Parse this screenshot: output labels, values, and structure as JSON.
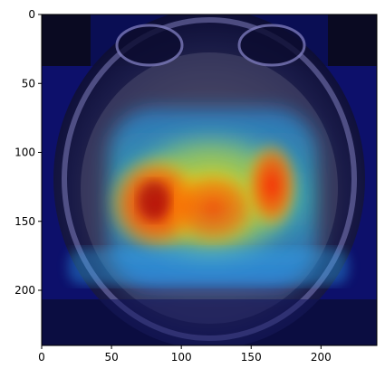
{
  "chart_data": {
    "type": "heatmap",
    "title": "",
    "xlabel": "",
    "ylabel": "",
    "xlim": [
      0,
      240
    ],
    "ylim": [
      240,
      0
    ],
    "x_ticks": [
      0,
      50,
      100,
      150,
      200
    ],
    "y_ticks": [
      0,
      50,
      100,
      150,
      200
    ],
    "x_tick_labels": [
      "0",
      "50",
      "100",
      "150",
      "200"
    ],
    "y_tick_labels": [
      "0",
      "50",
      "100",
      "150",
      "200"
    ],
    "grid": false,
    "colormap": "jet",
    "background_image": "axial brain MRI slice",
    "overlay_opacity": 0.45,
    "heatmap_regions": [
      {
        "x": [
          35,
          205
        ],
        "y": [
          0,
          37
        ],
        "level": 0.05
      },
      {
        "x": [
          0,
          240
        ],
        "y": [
          37,
          205
        ],
        "level": 0.12
      },
      {
        "x": [
          50,
          190
        ],
        "y": [
          55,
          185
        ],
        "level": 0.45
      },
      {
        "x": [
          55,
          180
        ],
        "y": [
          85,
          170
        ],
        "level": 0.75
      },
      {
        "x": [
          60,
          110
        ],
        "y": [
          105,
          165
        ],
        "level": 0.95
      },
      {
        "x": [
          150,
          180
        ],
        "y": [
          100,
          160
        ],
        "level": 0.9
      }
    ]
  }
}
